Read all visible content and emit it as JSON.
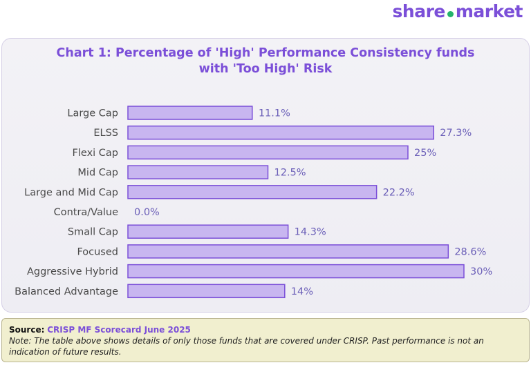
{
  "brand": {
    "left": "share",
    "right": "market"
  },
  "chart_data": {
    "type": "bar",
    "orientation": "horizontal",
    "title": "Chart 1: Percentage of 'High' Performance Consistency funds with 'Too High' Risk",
    "title_line1": "Chart 1: Percentage of 'High' Performance Consistency funds",
    "title_line2": "with 'Too High' Risk",
    "categories": [
      "Large Cap",
      "ELSS",
      "Flexi Cap",
      "Mid Cap",
      "Large and Mid Cap",
      "Contra/Value",
      "Small Cap",
      "Focused",
      "Aggressive Hybrid",
      "Balanced Advantage"
    ],
    "values": [
      11.1,
      27.3,
      25,
      12.5,
      22.2,
      0.0,
      14.3,
      28.6,
      30,
      14
    ],
    "value_labels": [
      "11.1%",
      "27.3%",
      "25%",
      "12.5%",
      "22.2%",
      "0.0%",
      "14.3%",
      "28.6%",
      "30%",
      "14%"
    ],
    "bar_color": "#c8b6f0",
    "bar_border": "#7b4fd8",
    "grid": false
  },
  "source": {
    "label": "Source:",
    "value": "CRISP MF Scorecard June 2025",
    "note": "Note: The table above shows details of only those funds that are covered under CRISP. Past performance is not an indication of future results."
  }
}
